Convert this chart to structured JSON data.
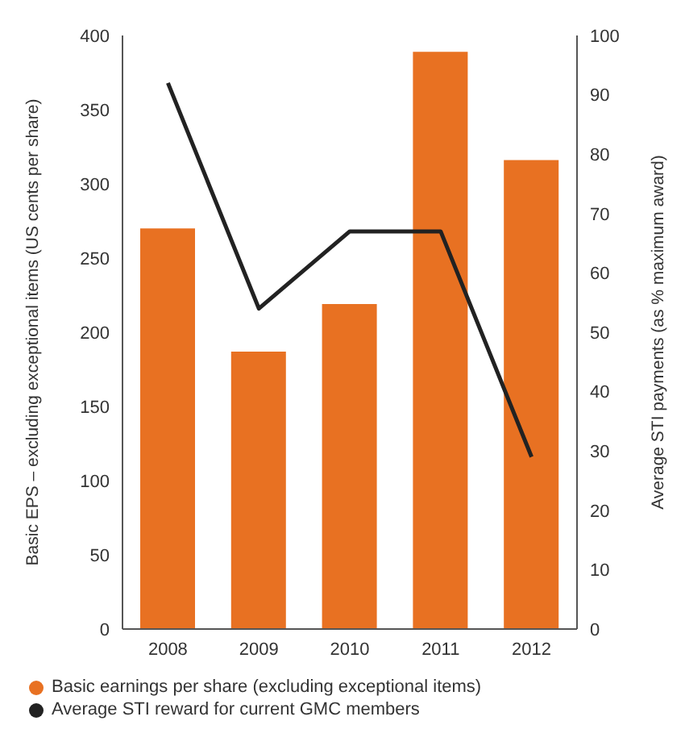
{
  "chart_data": {
    "type": "bar",
    "categories": [
      "2008",
      "2009",
      "2010",
      "2011",
      "2012"
    ],
    "series": [
      {
        "name": "Basic earnings per share (excluding exceptional items)",
        "color": "#e87122",
        "values": [
          270,
          187,
          219,
          389,
          316
        ]
      },
      {
        "name": "Average STI reward for current GMC members",
        "type": "line",
        "axis": "y2",
        "color": "#222222",
        "values": [
          92,
          54,
          67,
          67,
          29
        ]
      }
    ],
    "ylabel": "Basic EPS – excluding exceptional items (US cents per share)",
    "y2label": "Average STI payments (as % maximum award)",
    "ylim": [
      0,
      400
    ],
    "yticks": [
      0,
      50,
      100,
      150,
      200,
      250,
      300,
      350,
      400
    ],
    "y2lim": [
      0,
      100
    ],
    "y2ticks": [
      0,
      10,
      20,
      30,
      40,
      50,
      60,
      70,
      80,
      90,
      100
    ],
    "legend": "bottom left"
  }
}
